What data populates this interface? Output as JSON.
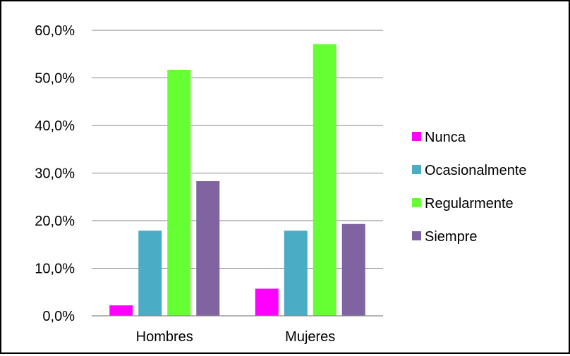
{
  "chart_data": {
    "type": "bar",
    "categories": [
      "Hombres",
      "Mujeres"
    ],
    "series": [
      {
        "name": "Nunca",
        "color": "#ff00ff",
        "values": [
          2.2,
          5.7
        ]
      },
      {
        "name": "Ocasionalmente",
        "color": "#4bacc6",
        "values": [
          17.9,
          17.9
        ]
      },
      {
        "name": "Regularmente",
        "color": "#66ff33",
        "values": [
          51.7,
          57.1
        ]
      },
      {
        "name": "Siempre",
        "color": "#8064a2",
        "values": [
          28.3,
          19.3
        ]
      }
    ],
    "y_ticks": [
      "0,0%",
      "10,0%",
      "20,0%",
      "30,0%",
      "40,0%",
      "50,0%",
      "60,0%"
    ],
    "ylim": [
      0,
      60
    ],
    "grid": true,
    "legend_position": "right"
  }
}
